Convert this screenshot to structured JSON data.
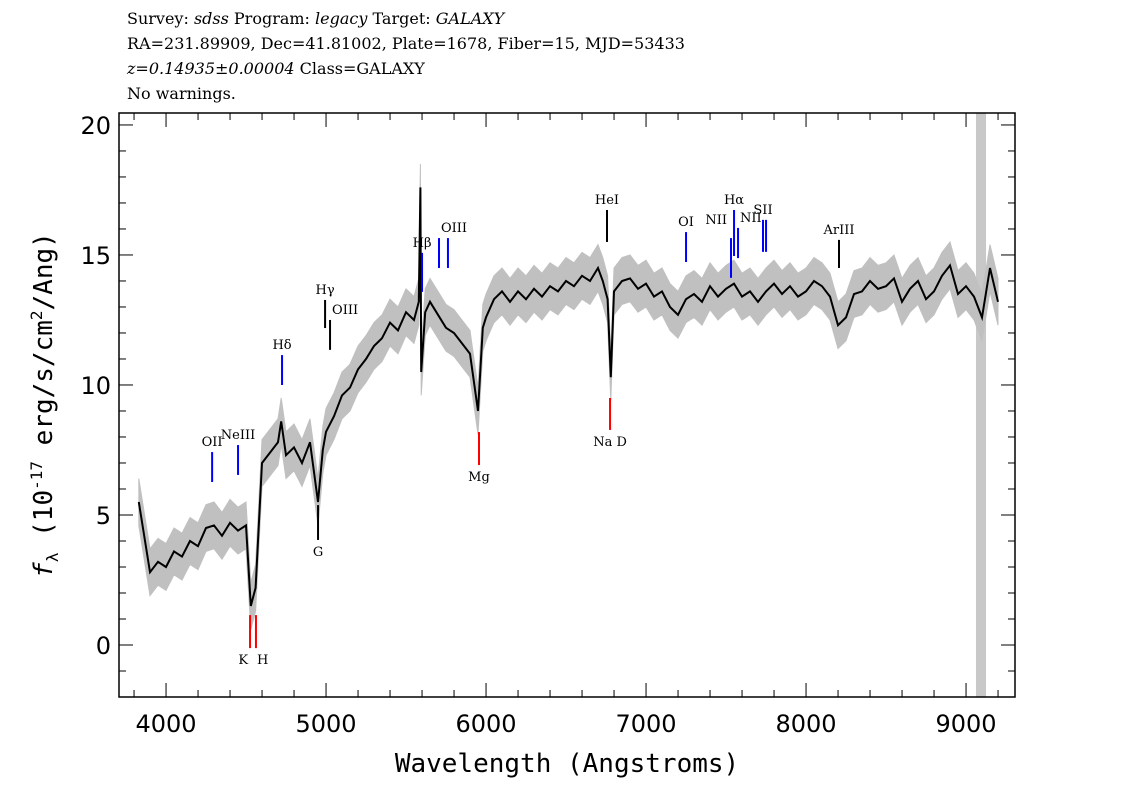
{
  "header": {
    "line1": {
      "survey_label": "Survey: ",
      "survey": "sdss",
      "program_label": " Program: ",
      "program": "legacy",
      "target_label": " Target: ",
      "target": "GALAXY"
    },
    "line2": "RA=231.89909, Dec=41.81002, Plate=1678, Fiber=15, MJD=53433",
    "line3": {
      "redshift": "z=0.14935±0.00004",
      "class": " Class=GALAXY"
    },
    "line4": "No warnings."
  },
  "chart_data": {
    "type": "line",
    "title": "",
    "xlabel": "Wavelength (Angstroms)",
    "ylabel": "f_λ (10^-17 erg/s/cm^2/Ang)",
    "ylabel_parts": {
      "f": "f",
      "sub": "λ",
      "pre": " (10",
      "exp": "-17",
      "mid": " erg/s/cm",
      "exp2": "2",
      "post": "/Ang)"
    },
    "xlim": [
      3706,
      9306
    ],
    "ylim": [
      -2,
      20.46
    ],
    "xticks": [
      4000,
      5000,
      6000,
      7000,
      8000,
      9000
    ],
    "xtick_labels": [
      "4000",
      "5000",
      "6000",
      "7000",
      "8000",
      "9000"
    ],
    "yticks": [
      0,
      5,
      10,
      15,
      20
    ],
    "ytick_labels": [
      "0",
      "5",
      "10",
      "15",
      "20"
    ],
    "grid": false,
    "colors": {
      "flux": "#000000",
      "error": "#c0c0c0",
      "emission": "#0000ff",
      "absorption": "#ff0000",
      "sky": "#000000",
      "masked": "#c8c8c8"
    },
    "masked_region": [
      9062,
      9125
    ],
    "error_band": 0.9,
    "x": [
      3830,
      3900,
      3950,
      4000,
      4050,
      4100,
      4150,
      4200,
      4250,
      4300,
      4350,
      4400,
      4450,
      4500,
      4530,
      4560,
      4600,
      4650,
      4700,
      4720,
      4750,
      4800,
      4850,
      4900,
      4950,
      4980,
      5000,
      5050,
      5100,
      5150,
      5200,
      5250,
      5300,
      5350,
      5400,
      5450,
      5500,
      5550,
      5580,
      5590,
      5595,
      5620,
      5650,
      5700,
      5750,
      5800,
      5850,
      5900,
      5950,
      5980,
      6000,
      6050,
      6100,
      6150,
      6200,
      6250,
      6300,
      6350,
      6400,
      6450,
      6500,
      6550,
      6600,
      6650,
      6700,
      6730,
      6760,
      6780,
      6800,
      6850,
      6900,
      6950,
      7000,
      7050,
      7100,
      7150,
      7200,
      7250,
      7300,
      7350,
      7400,
      7450,
      7500,
      7550,
      7600,
      7650,
      7700,
      7750,
      7800,
      7850,
      7900,
      7950,
      8000,
      8050,
      8100,
      8150,
      8200,
      8250,
      8300,
      8350,
      8400,
      8450,
      8500,
      8550,
      8600,
      8650,
      8700,
      8750,
      8800,
      8850,
      8900,
      8950,
      9000,
      9050,
      9100,
      9150,
      9200
    ],
    "flux": [
      5.5,
      2.8,
      3.2,
      3.0,
      3.6,
      3.4,
      4.0,
      3.8,
      4.5,
      4.6,
      4.2,
      4.7,
      4.4,
      4.6,
      1.5,
      2.2,
      7.0,
      7.4,
      7.8,
      8.6,
      7.3,
      7.6,
      7.0,
      7.8,
      5.5,
      7.5,
      8.2,
      8.8,
      9.6,
      9.9,
      10.6,
      11.0,
      11.5,
      11.8,
      12.4,
      12.1,
      12.8,
      12.5,
      13.2,
      17.6,
      10.5,
      12.8,
      13.2,
      12.7,
      12.2,
      12.0,
      11.6,
      11.2,
      9.0,
      12.2,
      12.6,
      13.3,
      13.6,
      13.2,
      13.6,
      13.3,
      13.7,
      13.4,
      13.8,
      13.6,
      14.0,
      13.8,
      14.2,
      14.0,
      14.5,
      14.0,
      13.3,
      10.3,
      13.6,
      14.0,
      14.1,
      13.7,
      13.9,
      13.4,
      13.6,
      13.0,
      12.7,
      13.3,
      13.5,
      13.2,
      13.8,
      13.4,
      13.7,
      13.9,
      13.4,
      13.6,
      13.2,
      13.6,
      13.9,
      13.5,
      13.8,
      13.4,
      13.6,
      14.0,
      13.8,
      13.4,
      12.3,
      12.6,
      13.5,
      13.6,
      14.0,
      13.7,
      13.8,
      14.1,
      13.2,
      13.7,
      14.0,
      13.3,
      13.6,
      14.2,
      14.6,
      13.5,
      13.8,
      13.4,
      12.6,
      14.5,
      13.2
    ],
    "lines": [
      {
        "label": "OII",
        "wavelength": 4288,
        "color": "#0000ff",
        "y": [
          6.27,
          7.42
        ],
        "side": "above"
      },
      {
        "label": "NeIII",
        "wavelength": 4450,
        "color": "#0000ff",
        "y": [
          6.54,
          7.69
        ],
        "side": "above"
      },
      {
        "label": "K",
        "wavelength": 4525,
        "color": "#ff0000",
        "y": [
          -0.12,
          1.15
        ],
        "side": "below"
      },
      {
        "label": "H",
        "wavelength": 4562,
        "color": "#ff0000",
        "y": [
          -0.12,
          1.15
        ],
        "side": "below"
      },
      {
        "label": "Hδ",
        "wavelength": 4725,
        "color": "#0000ff",
        "y": [
          10.0,
          11.15
        ],
        "side": "above"
      },
      {
        "label": "G",
        "wavelength": 4950,
        "color": "#000000",
        "y": [
          4.04,
          5.38
        ],
        "side": "below"
      },
      {
        "label": "Hγ",
        "wavelength": 4994,
        "color": "#000000",
        "y": [
          12.19,
          13.27
        ],
        "side": "above"
      },
      {
        "label": "OIII",
        "wavelength": 5025,
        "color": "#000000",
        "y": [
          11.35,
          12.5
        ],
        "side": "right"
      },
      {
        "label": "Hβ",
        "wavelength": 5600,
        "color": "#0000ff",
        "y": [
          13.58,
          15.08
        ],
        "side": "above"
      },
      {
        "label": "OIII",
        "wavelength": 5706,
        "color": "#0000ff",
        "y": [
          14.5,
          15.65
        ],
        "side": "above-right"
      },
      {
        "label": "",
        "wavelength": 5762,
        "color": "#0000ff",
        "y": [
          14.5,
          15.65
        ],
        "side": "above"
      },
      {
        "label": "Mg",
        "wavelength": 5956,
        "color": "#ff0000",
        "y": [
          6.92,
          8.19
        ],
        "side": "below"
      },
      {
        "label": "HeI",
        "wavelength": 6756,
        "color": "#000000",
        "y": [
          15.5,
          16.73
        ],
        "side": "above"
      },
      {
        "label": "Na D",
        "wavelength": 6775,
        "color": "#ff0000",
        "y": [
          8.27,
          9.5
        ],
        "side": "below"
      },
      {
        "label": "OI",
        "wavelength": 7250,
        "color": "#0000ff",
        "y": [
          14.73,
          15.88
        ],
        "side": "above"
      },
      {
        "label": "NII",
        "wavelength": 7531,
        "color": "#0000ff",
        "y": [
          14.12,
          15.65
        ],
        "side": "above-left"
      },
      {
        "label": "Hα",
        "wavelength": 7550,
        "color": "#0000ff",
        "y": [
          14.96,
          16.73
        ],
        "side": "above"
      },
      {
        "label": "NII",
        "wavelength": 7575,
        "color": "#0000ff",
        "y": [
          14.88,
          16.04
        ],
        "side": "above-right"
      },
      {
        "label": "SII",
        "wavelength": 7731,
        "color": "#0000ff",
        "y": [
          15.12,
          16.35
        ],
        "side": "above"
      },
      {
        "label": "",
        "wavelength": 7750,
        "color": "#0000ff",
        "y": [
          15.12,
          16.35
        ],
        "side": "above"
      },
      {
        "label": "ArIII",
        "wavelength": 8206,
        "color": "#000000",
        "y": [
          14.5,
          15.58
        ],
        "side": "above"
      }
    ]
  }
}
